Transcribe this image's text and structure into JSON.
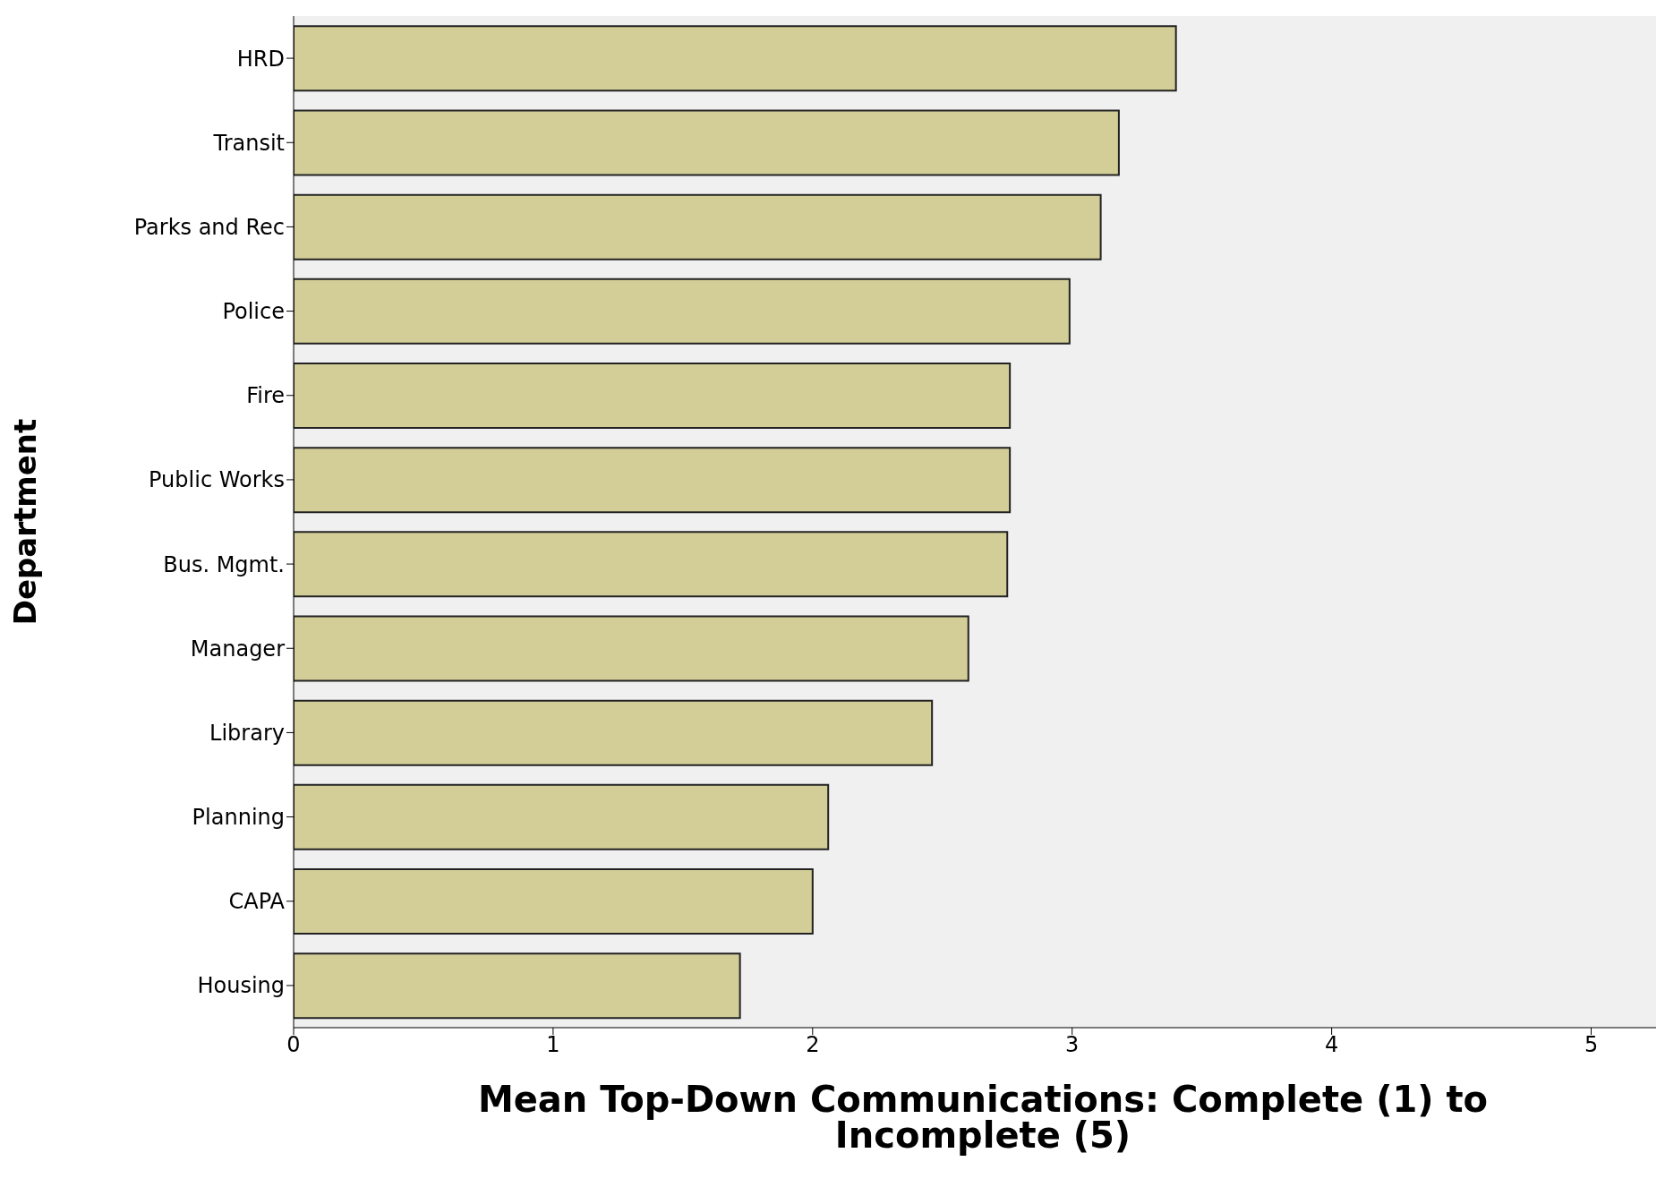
{
  "chart_data": {
    "type": "bar",
    "orientation": "horizontal",
    "xlabel": "Mean Top-Down Communications: Complete (1) to Incomplete (5)",
    "ylabel": "Department",
    "categories": [
      "HRD",
      "Transit",
      "Parks and Rec",
      "Police",
      "Fire",
      "Public Works",
      "Bus. Mgmt.",
      "Manager",
      "Library",
      "Planning",
      "CAPA",
      "Housing"
    ],
    "values": [
      3.4,
      3.18,
      3.11,
      2.99,
      2.76,
      2.76,
      2.75,
      2.6,
      2.46,
      2.06,
      2.0,
      1.72
    ],
    "color": "#d3ce98",
    "xlim": [
      0,
      5.25
    ],
    "xticks": [
      0,
      1,
      2,
      3,
      4,
      5
    ],
    "grid": false
  }
}
